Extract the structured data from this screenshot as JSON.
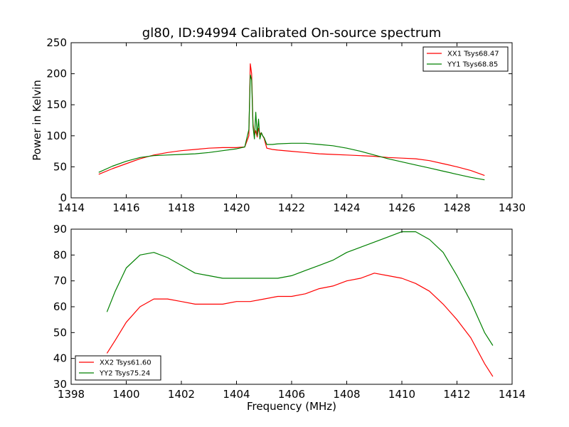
{
  "chart_data": [
    {
      "type": "line",
      "title": "gl80, ID:94994 Calibrated On-source spectrum",
      "xlabel": "",
      "ylabel": "Power in Kelvin",
      "xlim": [
        1414,
        1430
      ],
      "ylim": [
        0,
        250
      ],
      "xticks": [
        "1414",
        "1416",
        "1418",
        "1420",
        "1422",
        "1424",
        "1426",
        "1428",
        "1430"
      ],
      "yticks": [
        "0",
        "50",
        "100",
        "150",
        "200",
        "250"
      ],
      "legend_position": "top-right",
      "series": [
        {
          "name": "XX1 Tsys68.47",
          "color": "#ff0000",
          "x": [
            1415.0,
            1415.5,
            1416.0,
            1416.5,
            1417.0,
            1417.5,
            1418.0,
            1418.5,
            1419.0,
            1419.5,
            1420.0,
            1420.3,
            1420.45,
            1420.5,
            1420.55,
            1420.6,
            1420.65,
            1420.7,
            1420.75,
            1420.8,
            1420.85,
            1420.9,
            1420.95,
            1421.0,
            1421.1,
            1421.3,
            1421.5,
            1422.0,
            1422.5,
            1423.0,
            1423.5,
            1424.0,
            1424.5,
            1425.0,
            1425.5,
            1426.0,
            1426.5,
            1427.0,
            1427.5,
            1428.0,
            1428.5,
            1429.0
          ],
          "y": [
            38,
            47,
            55,
            63,
            69,
            73,
            76,
            78,
            80,
            81,
            81,
            82,
            100,
            216,
            200,
            120,
            100,
            108,
            98,
            112,
            102,
            105,
            100,
            96,
            80,
            78,
            77,
            75,
            73,
            71,
            70,
            69,
            68,
            67,
            65,
            64,
            63,
            60,
            55,
            50,
            44,
            36
          ]
        },
        {
          "name": "YY1 Tsys68.85",
          "color": "#008000",
          "x": [
            1415.0,
            1415.5,
            1416.0,
            1416.5,
            1417.0,
            1417.5,
            1418.0,
            1418.5,
            1419.0,
            1419.5,
            1420.0,
            1420.3,
            1420.45,
            1420.5,
            1420.55,
            1420.6,
            1420.65,
            1420.7,
            1420.75,
            1420.8,
            1420.85,
            1420.9,
            1420.95,
            1421.0,
            1421.1,
            1421.3,
            1421.5,
            1422.0,
            1422.5,
            1423.0,
            1423.5,
            1424.0,
            1424.5,
            1425.0,
            1425.5,
            1426.0,
            1426.5,
            1427.0,
            1427.5,
            1428.0,
            1428.5,
            1429.0
          ],
          "y": [
            41,
            51,
            59,
            65,
            68,
            69,
            70,
            71,
            73,
            76,
            79,
            82,
            110,
            198,
            190,
            115,
            95,
            138,
            100,
            127,
            95,
            105,
            100,
            97,
            86,
            86,
            87,
            88,
            88,
            86,
            84,
            80,
            75,
            69,
            63,
            58,
            53,
            48,
            43,
            38,
            33,
            29
          ]
        }
      ]
    },
    {
      "type": "line",
      "title": "",
      "xlabel": "Frequency (MHz)",
      "ylabel": "",
      "xlim": [
        1398,
        1414
      ],
      "ylim": [
        30,
        90
      ],
      "xticks": [
        "1398",
        "1400",
        "1402",
        "1404",
        "1406",
        "1408",
        "1410",
        "1412",
        "1414"
      ],
      "yticks": [
        "30",
        "40",
        "50",
        "60",
        "70",
        "80",
        "90"
      ],
      "legend_position": "bottom-left",
      "series": [
        {
          "name": "XX2 Tsys61.60",
          "color": "#ff0000",
          "x": [
            1399.3,
            1399.6,
            1400.0,
            1400.5,
            1401.0,
            1401.5,
            1402.0,
            1402.5,
            1403.0,
            1403.5,
            1404.0,
            1404.5,
            1405.0,
            1405.5,
            1406.0,
            1406.5,
            1407.0,
            1407.5,
            1408.0,
            1408.5,
            1409.0,
            1409.5,
            1410.0,
            1410.5,
            1411.0,
            1411.5,
            1412.0,
            1412.5,
            1413.0,
            1413.3
          ],
          "y": [
            42,
            47,
            54,
            60,
            63,
            63,
            62,
            61,
            61,
            61,
            62,
            62,
            63,
            64,
            64,
            65,
            67,
            68,
            70,
            71,
            73,
            72,
            71,
            69,
            66,
            61,
            55,
            48,
            38,
            33
          ]
        },
        {
          "name": "YY2 Tsys75.24",
          "color": "#008000",
          "x": [
            1399.3,
            1399.6,
            1400.0,
            1400.5,
            1401.0,
            1401.5,
            1402.0,
            1402.5,
            1403.0,
            1403.5,
            1404.0,
            1404.5,
            1405.0,
            1405.5,
            1406.0,
            1406.5,
            1407.0,
            1407.5,
            1408.0,
            1408.5,
            1409.0,
            1409.5,
            1410.0,
            1410.5,
            1411.0,
            1411.5,
            1412.0,
            1412.5,
            1413.0,
            1413.3
          ],
          "y": [
            58,
            66,
            75,
            80,
            81,
            79,
            76,
            73,
            72,
            71,
            71,
            71,
            71,
            71,
            72,
            74,
            76,
            78,
            81,
            83,
            85,
            87,
            89,
            89,
            86,
            81,
            72,
            62,
            50,
            45
          ]
        }
      ]
    }
  ]
}
